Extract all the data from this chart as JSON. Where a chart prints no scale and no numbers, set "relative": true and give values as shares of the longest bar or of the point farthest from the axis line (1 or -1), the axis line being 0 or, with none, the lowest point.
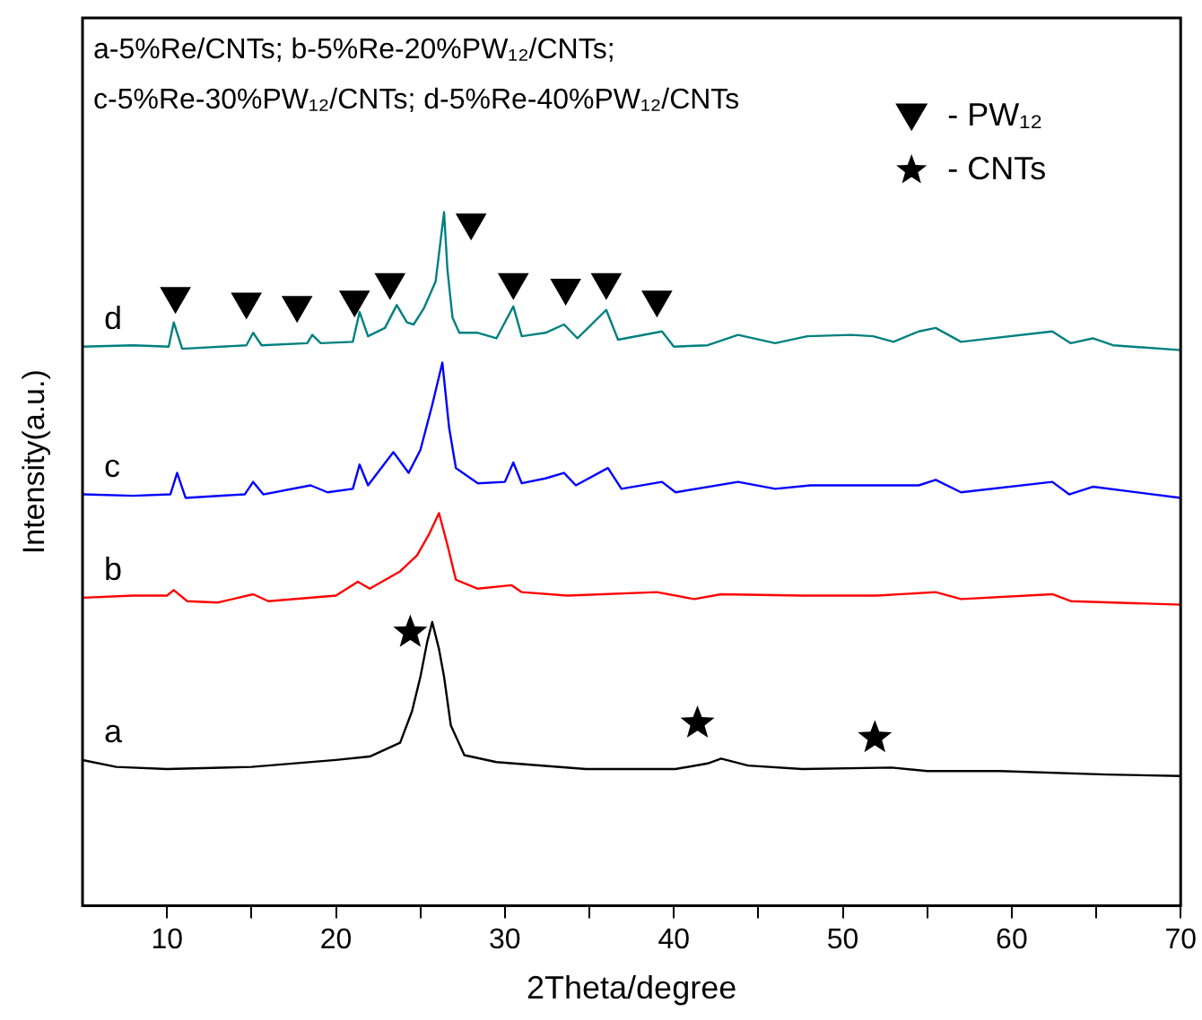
{
  "chart_data": {
    "type": "line",
    "relative": true,
    "xlabel": "2Theta/degree",
    "ylabel": "Intensity(a.u.)",
    "xlim": [
      5,
      70
    ],
    "xticks": [
      10,
      {
        "value": 15,
        "label": null
      },
      20,
      {
        "value": 25,
        "label": null
      },
      30,
      {
        "value": 35,
        "label": null
      },
      40,
      {
        "value": 45,
        "label": null
      },
      50,
      {
        "value": 55,
        "label": null
      },
      60,
      {
        "value": 65,
        "label": null
      },
      70
    ],
    "grid": false,
    "legend": "top right",
    "marker": "none",
    "line_style": "solid",
    "annotations": [
      "a-5%Re/CNTs; b-5%Re-20%PW₁₂/CNTs;",
      "c-5%Re-30%PW₁₂/CNTs; d-5%Re-40%PW₁₂/CNTs"
    ],
    "series": [
      {
        "name": "a",
        "color": "#000000",
        "x": [
          5,
          7,
          10,
          15,
          20,
          22,
          23.8,
          24.5,
          25.0,
          25.4,
          25.7,
          26.1,
          26.4,
          26.8,
          27.6,
          29.5,
          34.8,
          40.1,
          42,
          42.8,
          44.4,
          47.6,
          52.9,
          55,
          59.3,
          65.6,
          70
        ],
        "values": [
          0.21,
          0.2,
          0.197,
          0.2,
          0.21,
          0.215,
          0.235,
          0.28,
          0.33,
          0.38,
          0.409,
          0.37,
          0.33,
          0.26,
          0.217,
          0.207,
          0.197,
          0.197,
          0.205,
          0.212,
          0.202,
          0.197,
          0.199,
          0.194,
          0.194,
          0.189,
          0.187
        ]
      },
      {
        "name": "b",
        "color": "#ff0000",
        "x": [
          5,
          8,
          10.0,
          10.4,
          11.2,
          13,
          15.1,
          16,
          20,
          21.3,
          22,
          23.8,
          24.8,
          25.5,
          26.1,
          26.6,
          27.1,
          28.4,
          30.4,
          31,
          33.7,
          39.0,
          41.2,
          42.8,
          47.6,
          52,
          55.5,
          57,
          62.4,
          63.5,
          70
        ],
        "values": [
          0.444,
          0.447,
          0.447,
          0.455,
          0.439,
          0.437,
          0.449,
          0.439,
          0.447,
          0.467,
          0.457,
          0.482,
          0.505,
          0.535,
          0.566,
          0.52,
          0.47,
          0.457,
          0.462,
          0.452,
          0.447,
          0.452,
          0.442,
          0.449,
          0.447,
          0.447,
          0.452,
          0.442,
          0.449,
          0.439,
          0.434
        ]
      },
      {
        "name": "c",
        "color": "#0000ff",
        "x": [
          5,
          8,
          10.2,
          10.6,
          11.1,
          14.6,
          15.1,
          15.7,
          18.5,
          19.5,
          21.0,
          21.4,
          21.9,
          23.4,
          24.3,
          25.0,
          25.7,
          26.3,
          26.7,
          27.1,
          28.4,
          30.0,
          30.5,
          31.0,
          32.4,
          33.5,
          34.2,
          36.1,
          36.9,
          39.3,
          40.1,
          43.8,
          46,
          48.1,
          50.5,
          54.5,
          55.5,
          57,
          62.4,
          63.4,
          64.8,
          70
        ],
        "values": [
          0.593,
          0.591,
          0.593,
          0.624,
          0.588,
          0.593,
          0.611,
          0.593,
          0.606,
          0.596,
          0.601,
          0.636,
          0.606,
          0.654,
          0.624,
          0.657,
          0.722,
          0.783,
          0.689,
          0.631,
          0.609,
          0.611,
          0.639,
          0.609,
          0.616,
          0.624,
          0.606,
          0.631,
          0.601,
          0.611,
          0.596,
          0.611,
          0.601,
          0.606,
          0.606,
          0.606,
          0.614,
          0.596,
          0.611,
          0.593,
          0.604,
          0.588
        ]
      },
      {
        "name": "d",
        "color": "#008080",
        "x": [
          5,
          8,
          10.1,
          10.4,
          10.9,
          14.7,
          15.1,
          15.6,
          18.3,
          18.6,
          19.1,
          21.0,
          21.4,
          21.9,
          22.9,
          23.6,
          24.2,
          24.6,
          25.2,
          25.9,
          26.4,
          26.6,
          26.9,
          27.3,
          28.4,
          29.5,
          30.5,
          31.0,
          32.4,
          33.5,
          34.3,
          36.0,
          36.7,
          39.3,
          40.0,
          42,
          43.8,
          46,
          47.9,
          50.5,
          51.8,
          53,
          54.5,
          55.5,
          57,
          62.4,
          63.5,
          64.8,
          66,
          70
        ],
        "values": [
          0.806,
          0.808,
          0.806,
          0.841,
          0.803,
          0.808,
          0.826,
          0.808,
          0.811,
          0.823,
          0.811,
          0.813,
          0.856,
          0.821,
          0.833,
          0.866,
          0.841,
          0.838,
          0.861,
          0.9,
          1.0,
          0.917,
          0.848,
          0.826,
          0.826,
          0.818,
          0.864,
          0.821,
          0.826,
          0.838,
          0.818,
          0.859,
          0.816,
          0.828,
          0.806,
          0.808,
          0.823,
          0.811,
          0.821,
          0.823,
          0.821,
          0.813,
          0.828,
          0.833,
          0.813,
          0.828,
          0.811,
          0.818,
          0.808,
          0.801
        ]
      },
      {
        "name": "- PW₁₂",
        "type": "scatter",
        "marker": "triangle",
        "color": "#000000",
        "x": [
          10.5,
          14.7,
          17.7,
          21.1,
          23.2,
          28.0,
          30.5,
          33.6,
          36.0,
          39.0
        ],
        "values": [
          0.879,
          0.871,
          0.866,
          0.874,
          0.899,
          0.985,
          0.899,
          0.891,
          0.899,
          0.874
        ]
      },
      {
        "name": "- CNTs",
        "type": "scatter",
        "marker": "star",
        "color": "#000000",
        "x": [
          24.4,
          41.4,
          51.9
        ],
        "values": [
          0.394,
          0.263,
          0.242
        ]
      }
    ]
  }
}
